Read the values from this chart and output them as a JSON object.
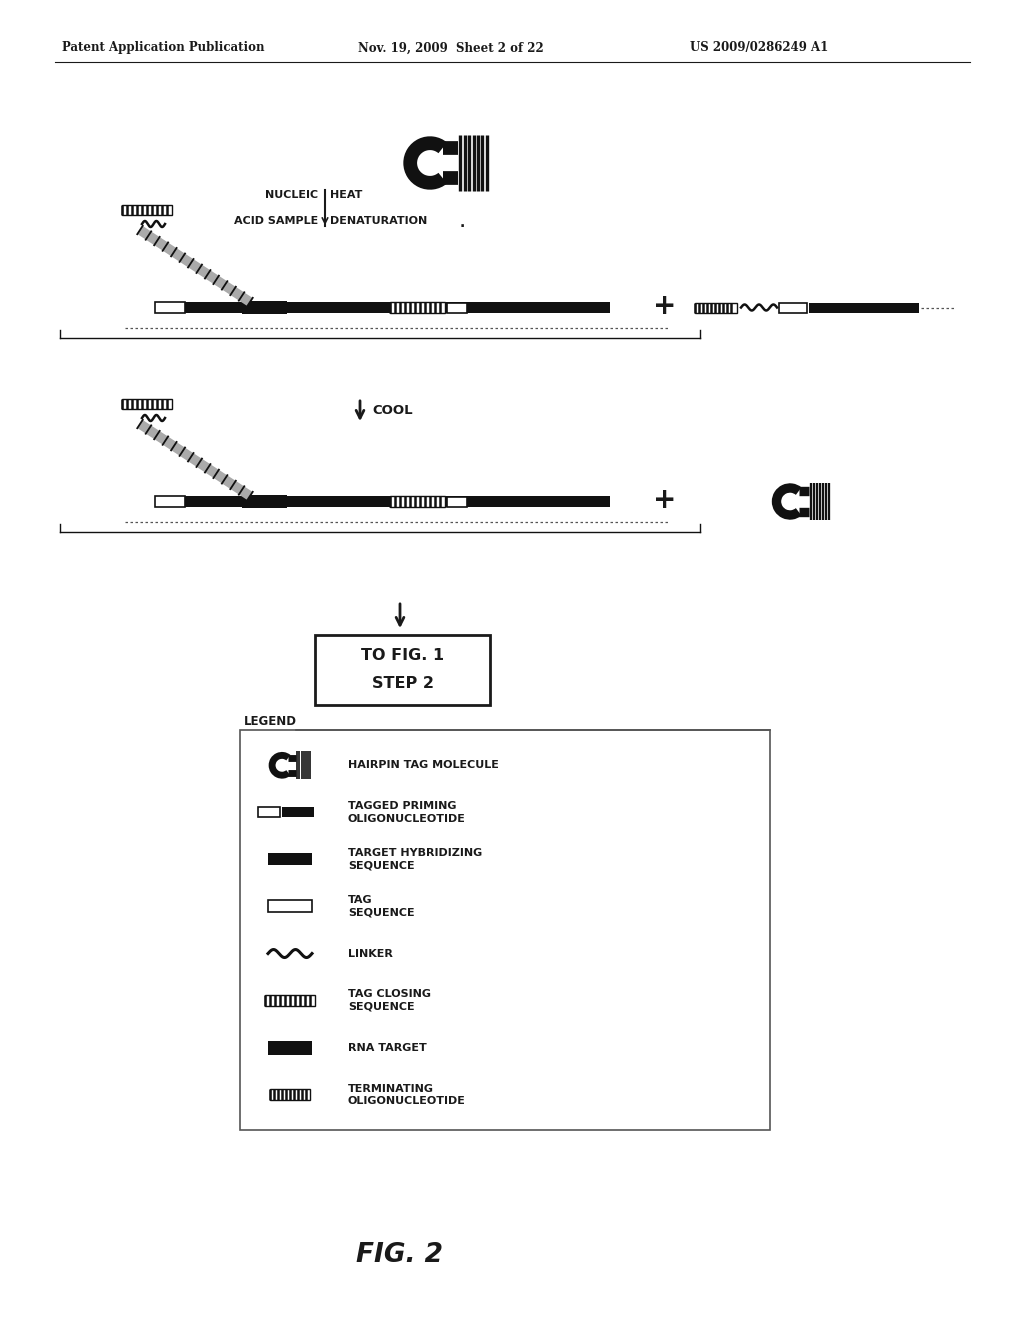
{
  "header_left": "Patent Application Publication",
  "header_mid": "Nov. 19, 2009  Sheet 2 of 22",
  "header_right": "US 2009/0286249 A1",
  "fig_label": "FIG. 2",
  "bg_color": "#ffffff",
  "fg_color": "#1a1a1a",
  "dark_color": "#111111"
}
